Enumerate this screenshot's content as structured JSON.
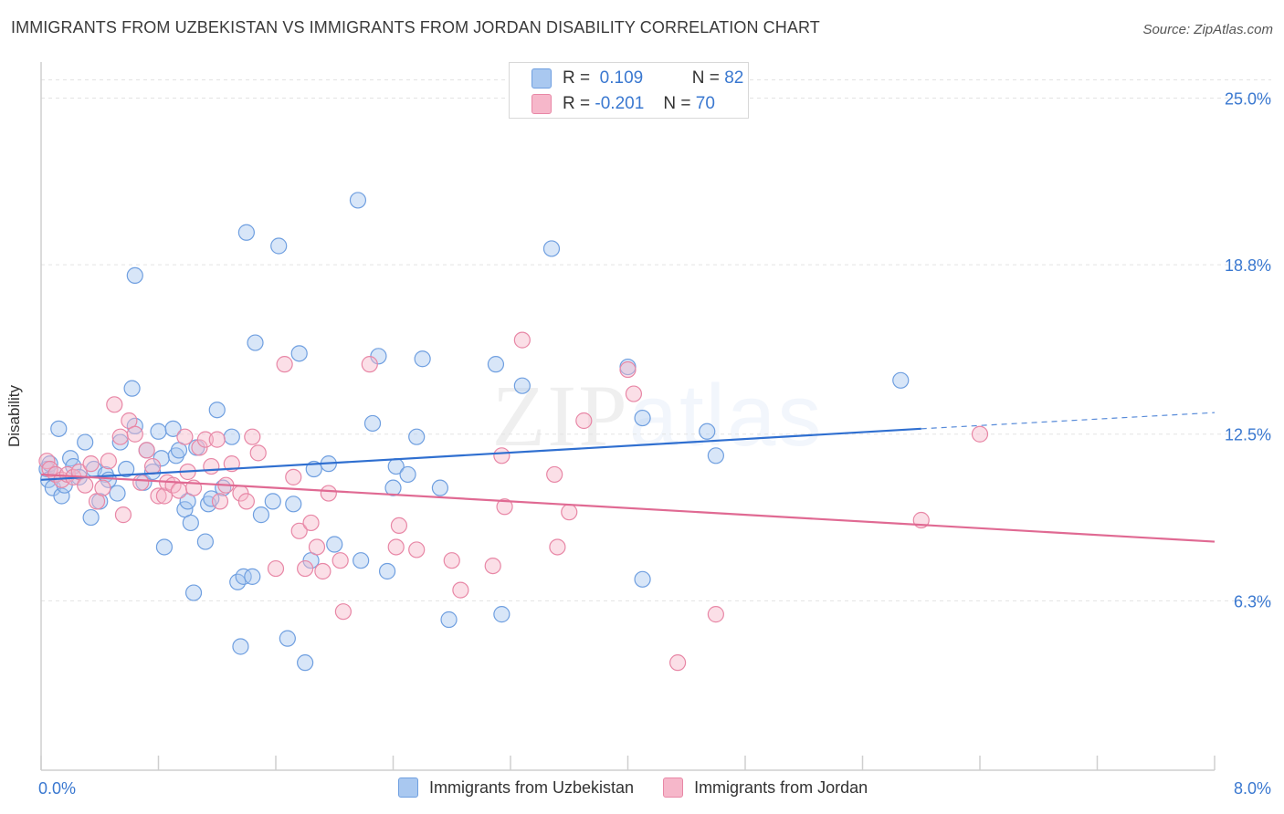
{
  "title": "IMMIGRANTS FROM UZBEKISTAN VS IMMIGRANTS FROM JORDAN DISABILITY CORRELATION CHART",
  "source": "Source: ZipAtlas.com",
  "watermark": "ZIPatlas",
  "legend_stats": [
    {
      "r_label": "R =",
      "r_value": "0.109",
      "n_label": "N =",
      "n_value": "82",
      "color": "#a9c8f0"
    },
    {
      "r_label": "R =",
      "r_value": "-0.201",
      "n_label": "N =",
      "n_value": "70",
      "color": "#f6b7ca"
    }
  ],
  "chart_data": {
    "type": "scatter",
    "title": "IMMIGRANTS FROM UZBEKISTAN VS IMMIGRANTS FROM JORDAN DISABILITY CORRELATION CHART",
    "xlabel": "",
    "ylabel": "Disability",
    "xlim": [
      0.0,
      8.0
    ],
    "ylim": [
      0.0,
      26.0
    ],
    "x_tick_labels": [
      "0.0%",
      "8.0%"
    ],
    "y_ticks": [
      6.3,
      12.5,
      18.8,
      25.0
    ],
    "y_tick_labels": [
      "6.3%",
      "12.5%",
      "18.8%",
      "25.0%"
    ],
    "grid": true,
    "legend_position": "bottom",
    "series": [
      {
        "name": "Immigrants from Uzbekistan",
        "color": "#6f9fe0",
        "fill": "#a9c8f0",
        "trend": {
          "x": [
            0.0,
            6.0
          ],
          "y": [
            10.8,
            12.7
          ],
          "dashed_to": [
            8.0,
            13.3
          ],
          "color": "#2f6fd0"
        },
        "points": [
          [
            0.04,
            11.2
          ],
          [
            0.05,
            10.8
          ],
          [
            0.06,
            11.4
          ],
          [
            0.08,
            10.5
          ],
          [
            0.1,
            11.0
          ],
          [
            0.12,
            12.7
          ],
          [
            0.14,
            10.2
          ],
          [
            0.16,
            10.6
          ],
          [
            0.2,
            11.6
          ],
          [
            0.22,
            11.3
          ],
          [
            0.26,
            10.9
          ],
          [
            0.3,
            12.2
          ],
          [
            0.34,
            9.4
          ],
          [
            0.36,
            11.2
          ],
          [
            0.4,
            10.0
          ],
          [
            0.44,
            11.0
          ],
          [
            0.46,
            10.8
          ],
          [
            0.52,
            10.3
          ],
          [
            0.54,
            12.2
          ],
          [
            0.58,
            11.2
          ],
          [
            0.62,
            14.2
          ],
          [
            0.64,
            12.8
          ],
          [
            0.7,
            10.7
          ],
          [
            0.72,
            11.9
          ],
          [
            0.76,
            11.1
          ],
          [
            0.8,
            12.6
          ],
          [
            0.82,
            11.6
          ],
          [
            0.84,
            8.3
          ],
          [
            0.9,
            12.7
          ],
          [
            0.92,
            11.7
          ],
          [
            0.94,
            11.9
          ],
          [
            0.98,
            9.7
          ],
          [
            1.0,
            10.0
          ],
          [
            1.02,
            9.2
          ],
          [
            1.04,
            6.6
          ],
          [
            1.06,
            12.0
          ],
          [
            1.12,
            8.5
          ],
          [
            1.14,
            9.9
          ],
          [
            1.16,
            10.1
          ],
          [
            1.2,
            13.4
          ],
          [
            1.24,
            10.5
          ],
          [
            1.3,
            12.4
          ],
          [
            1.34,
            7.0
          ],
          [
            1.36,
            4.6
          ],
          [
            1.38,
            7.2
          ],
          [
            1.44,
            7.2
          ],
          [
            1.46,
            15.9
          ],
          [
            1.5,
            9.5
          ],
          [
            1.58,
            10.0
          ],
          [
            1.62,
            19.5
          ],
          [
            1.68,
            4.9
          ],
          [
            1.72,
            9.9
          ],
          [
            1.76,
            15.5
          ],
          [
            1.8,
            4.0
          ],
          [
            1.84,
            7.8
          ],
          [
            1.86,
            11.2
          ],
          [
            1.96,
            11.4
          ],
          [
            2.0,
            8.4
          ],
          [
            2.16,
            21.2
          ],
          [
            2.18,
            7.8
          ],
          [
            2.26,
            12.9
          ],
          [
            2.3,
            15.4
          ],
          [
            2.36,
            7.4
          ],
          [
            2.4,
            10.5
          ],
          [
            2.42,
            11.3
          ],
          [
            2.5,
            11.0
          ],
          [
            2.56,
            12.4
          ],
          [
            2.6,
            15.3
          ],
          [
            2.72,
            10.5
          ],
          [
            2.78,
            5.6
          ],
          [
            3.1,
            15.1
          ],
          [
            3.14,
            5.8
          ],
          [
            3.28,
            14.3
          ],
          [
            3.48,
            19.4
          ],
          [
            4.0,
            15.0
          ],
          [
            4.1,
            13.1
          ],
          [
            4.1,
            7.1
          ],
          [
            4.54,
            12.6
          ],
          [
            4.6,
            11.7
          ],
          [
            5.86,
            14.5
          ],
          [
            1.4,
            20.0
          ],
          [
            0.64,
            18.4
          ]
        ]
      },
      {
        "name": "Immigrants from Jordan",
        "color": "#e887a6",
        "fill": "#f6b7ca",
        "trend": {
          "x": [
            0.0,
            8.0
          ],
          "y": [
            11.0,
            8.5
          ],
          "color": "#e06a93"
        },
        "points": [
          [
            0.04,
            11.5
          ],
          [
            0.06,
            11.2
          ],
          [
            0.1,
            11.0
          ],
          [
            0.14,
            10.8
          ],
          [
            0.18,
            11.0
          ],
          [
            0.22,
            10.9
          ],
          [
            0.26,
            11.1
          ],
          [
            0.3,
            10.6
          ],
          [
            0.34,
            11.4
          ],
          [
            0.38,
            10.0
          ],
          [
            0.42,
            10.5
          ],
          [
            0.46,
            11.5
          ],
          [
            0.5,
            13.6
          ],
          [
            0.54,
            12.4
          ],
          [
            0.56,
            9.5
          ],
          [
            0.6,
            13.0
          ],
          [
            0.64,
            12.5
          ],
          [
            0.68,
            10.7
          ],
          [
            0.72,
            11.9
          ],
          [
            0.76,
            11.3
          ],
          [
            0.8,
            10.2
          ],
          [
            0.84,
            10.2
          ],
          [
            0.86,
            10.7
          ],
          [
            0.9,
            10.6
          ],
          [
            0.94,
            10.4
          ],
          [
            0.98,
            12.4
          ],
          [
            1.0,
            11.1
          ],
          [
            1.04,
            10.5
          ],
          [
            1.08,
            12.0
          ],
          [
            1.12,
            12.3
          ],
          [
            1.16,
            11.3
          ],
          [
            1.2,
            12.3
          ],
          [
            1.22,
            10.0
          ],
          [
            1.26,
            10.6
          ],
          [
            1.3,
            11.4
          ],
          [
            1.36,
            10.3
          ],
          [
            1.4,
            10.0
          ],
          [
            1.44,
            12.4
          ],
          [
            1.48,
            11.8
          ],
          [
            1.6,
            7.5
          ],
          [
            1.66,
            15.1
          ],
          [
            1.72,
            10.9
          ],
          [
            1.76,
            8.9
          ],
          [
            1.8,
            7.5
          ],
          [
            1.84,
            9.2
          ],
          [
            1.88,
            8.3
          ],
          [
            1.92,
            7.4
          ],
          [
            1.96,
            10.3
          ],
          [
            2.04,
            7.8
          ],
          [
            2.06,
            5.9
          ],
          [
            2.24,
            15.1
          ],
          [
            2.42,
            8.3
          ],
          [
            2.44,
            9.1
          ],
          [
            2.56,
            8.2
          ],
          [
            2.8,
            7.8
          ],
          [
            2.86,
            6.7
          ],
          [
            3.08,
            7.6
          ],
          [
            3.14,
            11.7
          ],
          [
            3.16,
            9.8
          ],
          [
            3.28,
            16.0
          ],
          [
            3.5,
            11.0
          ],
          [
            3.52,
            8.3
          ],
          [
            3.6,
            9.6
          ],
          [
            3.7,
            13.0
          ],
          [
            4.0,
            14.9
          ],
          [
            4.04,
            14.0
          ],
          [
            4.34,
            4.0
          ],
          [
            4.6,
            5.8
          ],
          [
            6.0,
            9.3
          ],
          [
            6.4,
            12.5
          ]
        ]
      }
    ]
  }
}
